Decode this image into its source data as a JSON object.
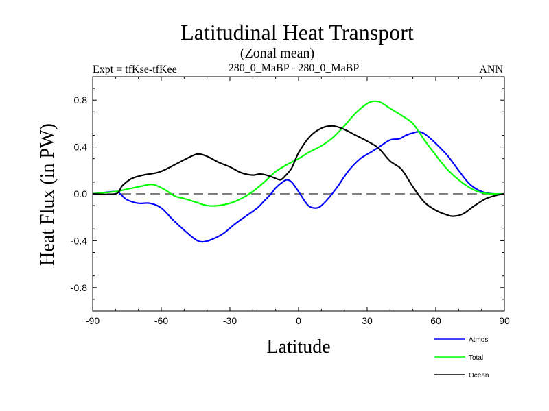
{
  "chart_data": {
    "type": "line",
    "title": "Latitudinal Heat Transport",
    "subtitle": "(Zonal mean)",
    "left_label": "Expt = tfKse-tfKee",
    "center_label": "280_0_MaBP - 280_0_MaBP",
    "right_label": "ANN",
    "xlabel": "Latitude",
    "ylabel": "Heat Flux (in PW)",
    "xlim": [
      -90,
      90
    ],
    "ylim": [
      -1.0,
      1.0
    ],
    "xticks": [
      -90,
      -60,
      -30,
      0,
      30,
      60,
      90
    ],
    "xtick_labels": [
      "-90",
      "-60",
      "-30",
      "0",
      "30",
      "60",
      "90"
    ],
    "yticks": [
      -0.8,
      -0.4,
      0.0,
      0.4,
      0.8
    ],
    "ytick_labels": [
      "-0.8",
      "-0.4",
      "0.0",
      "0.4",
      "0.8"
    ],
    "reference_line": 0.0,
    "series": [
      {
        "name": "Atmos",
        "color": "#0000ff",
        "x": [
          -90,
          -80,
          -78,
          -75,
          -70,
          -65,
          -60,
          -55,
          -50,
          -45,
          -42,
          -38,
          -33,
          -28,
          -23,
          -18,
          -15,
          -12,
          -10,
          -7,
          -5,
          -3,
          0,
          3,
          5,
          8,
          10,
          13,
          17,
          22,
          27,
          32,
          36,
          40,
          44,
          47,
          50,
          53,
          56,
          60,
          65,
          70,
          75,
          80,
          85,
          90
        ],
        "values": [
          0.0,
          0.02,
          0.0,
          -0.05,
          -0.08,
          -0.08,
          -0.12,
          -0.22,
          -0.31,
          -0.39,
          -0.41,
          -0.39,
          -0.34,
          -0.26,
          -0.19,
          -0.12,
          -0.06,
          0.0,
          0.05,
          0.1,
          0.12,
          0.1,
          0.02,
          -0.07,
          -0.11,
          -0.12,
          -0.1,
          -0.04,
          0.06,
          0.2,
          0.3,
          0.36,
          0.41,
          0.46,
          0.47,
          0.5,
          0.52,
          0.53,
          0.5,
          0.43,
          0.33,
          0.2,
          0.08,
          0.02,
          0.0,
          0.0
        ]
      },
      {
        "name": "Total",
        "color": "#00ff00",
        "x": [
          -90,
          -80,
          -75,
          -70,
          -65,
          -62,
          -58,
          -54,
          -50,
          -45,
          -40,
          -35,
          -30,
          -25,
          -20,
          -15,
          -10,
          -5,
          0,
          5,
          10,
          15,
          20,
          25,
          30,
          33,
          36,
          40,
          45,
          50,
          55,
          60,
          65,
          70,
          75,
          80,
          85,
          90
        ],
        "values": [
          0.0,
          0.02,
          0.04,
          0.06,
          0.08,
          0.07,
          0.03,
          -0.02,
          -0.04,
          -0.07,
          -0.1,
          -0.1,
          -0.08,
          -0.04,
          0.02,
          0.1,
          0.19,
          0.25,
          0.3,
          0.36,
          0.41,
          0.48,
          0.58,
          0.69,
          0.77,
          0.79,
          0.78,
          0.73,
          0.67,
          0.6,
          0.46,
          0.33,
          0.21,
          0.12,
          0.05,
          0.01,
          0.0,
          0.0
        ]
      },
      {
        "name": "Ocean",
        "color": "#000000",
        "x": [
          -90,
          -80,
          -77,
          -73,
          -68,
          -62,
          -58,
          -53,
          -48,
          -44,
          -40,
          -35,
          -30,
          -25,
          -20,
          -17,
          -14,
          -11,
          -8,
          -6,
          -3,
          0,
          5,
          10,
          15,
          20,
          25,
          30,
          35,
          40,
          45,
          50,
          55,
          60,
          65,
          68,
          72,
          77,
          82,
          87,
          90
        ],
        "values": [
          0.0,
          0.0,
          0.07,
          0.13,
          0.16,
          0.18,
          0.21,
          0.26,
          0.31,
          0.34,
          0.32,
          0.27,
          0.23,
          0.18,
          0.16,
          0.17,
          0.16,
          0.14,
          0.12,
          0.15,
          0.22,
          0.35,
          0.49,
          0.56,
          0.58,
          0.55,
          0.5,
          0.45,
          0.39,
          0.28,
          0.21,
          0.06,
          -0.07,
          -0.14,
          -0.18,
          -0.19,
          -0.17,
          -0.1,
          -0.04,
          -0.01,
          0.0
        ]
      }
    ]
  }
}
